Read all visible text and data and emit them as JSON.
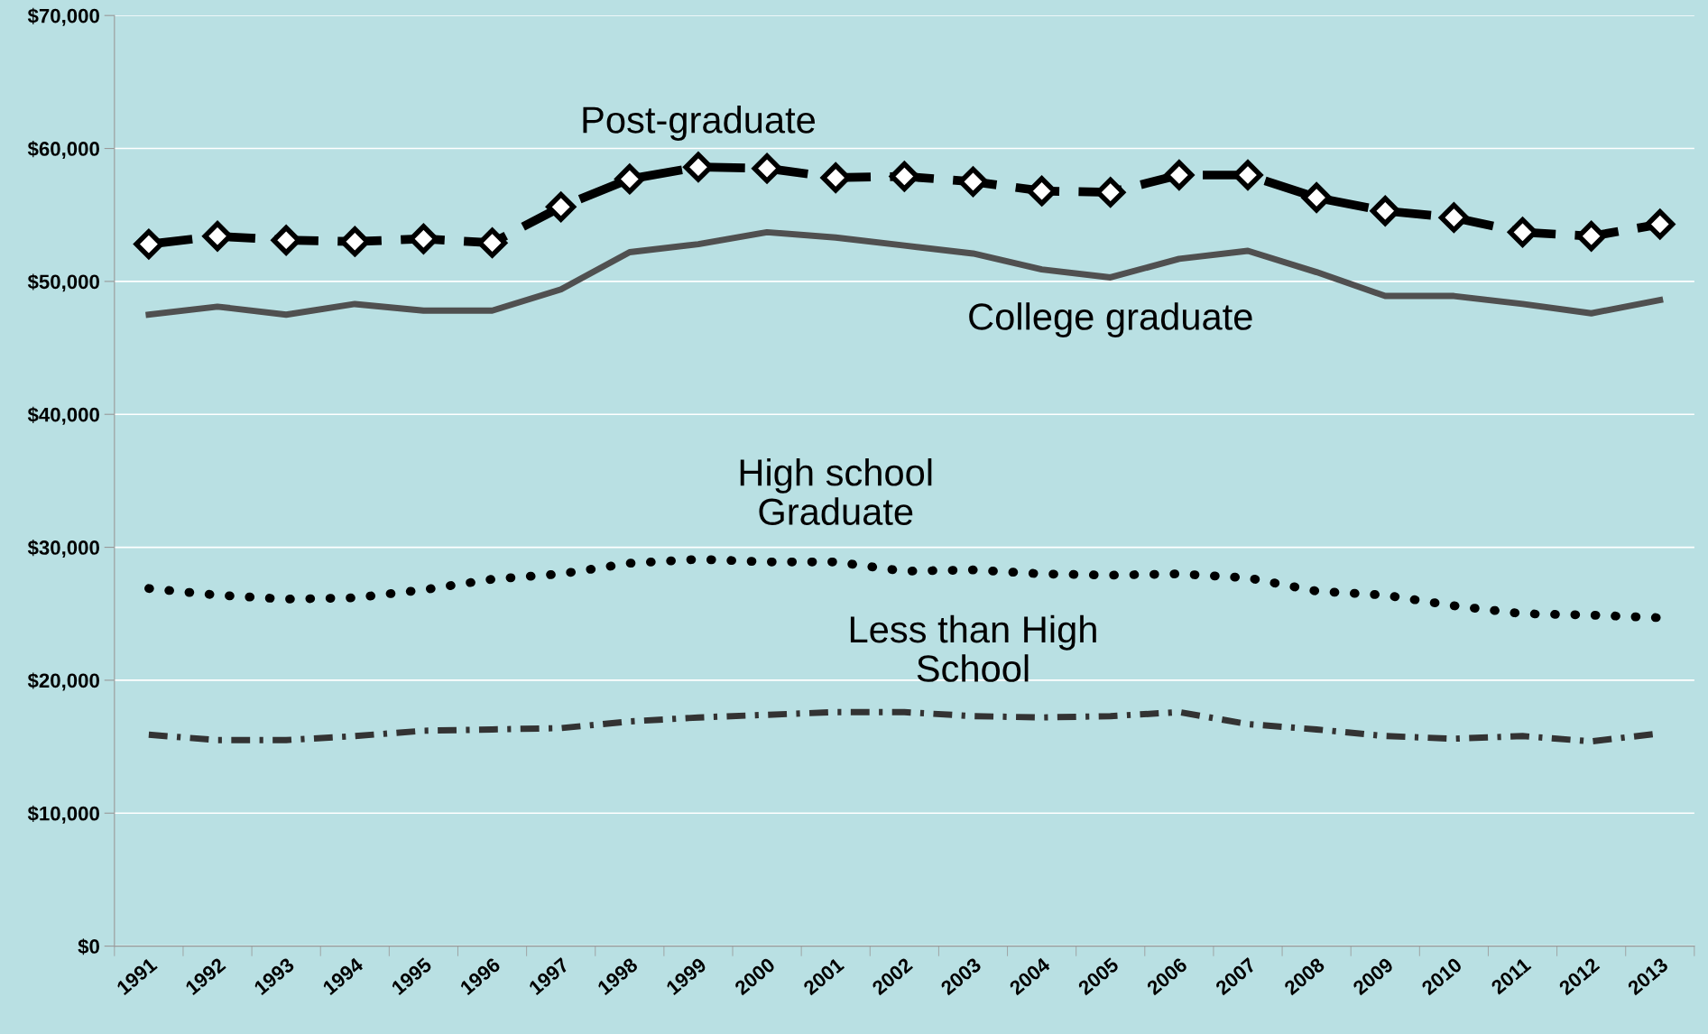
{
  "chart_data": {
    "type": "line",
    "categories": [
      "1991",
      "1992",
      "1993",
      "1994",
      "1995",
      "1996",
      "1997",
      "1998",
      "1999",
      "2000",
      "2001",
      "2002",
      "2003",
      "2004",
      "2005",
      "2006",
      "2007",
      "2008",
      "2009",
      "2010",
      "2011",
      "2012",
      "2013"
    ],
    "series": [
      {
        "name": "Post-graduate",
        "color": "#000000",
        "line_style": "dashed",
        "marker": "diamond",
        "values": [
          52800,
          53400,
          53100,
          53000,
          53200,
          52900,
          55600,
          57700,
          58600,
          58500,
          57800,
          57900,
          57500,
          56800,
          56700,
          58000,
          58000,
          56300,
          55300,
          54800,
          53700,
          53400,
          54300
        ]
      },
      {
        "name": "College graduate",
        "color": "#505050",
        "line_style": "solid",
        "marker": "none",
        "values": [
          47500,
          48100,
          47500,
          48300,
          47800,
          47800,
          49400,
          52200,
          52800,
          53700,
          53300,
          52700,
          52100,
          50900,
          50300,
          51700,
          52300,
          50700,
          48900,
          48900,
          48300,
          47600,
          48600
        ]
      },
      {
        "name": "High school\nGraduate",
        "color": "#000000",
        "line_style": "dotted",
        "marker": "none",
        "values": [
          26900,
          26400,
          26100,
          26200,
          26800,
          27600,
          28000,
          28800,
          29100,
          28900,
          28900,
          28200,
          28300,
          28000,
          27900,
          28000,
          27700,
          26700,
          26400,
          25600,
          25000,
          24900,
          24700
        ]
      },
      {
        "name": "Less than High\nSchool",
        "color": "#333333",
        "line_style": "dashdot",
        "marker": "none",
        "values": [
          15900,
          15500,
          15500,
          15800,
          16200,
          16300,
          16400,
          16900,
          17200,
          17400,
          17600,
          17600,
          17300,
          17200,
          17300,
          17600,
          16700,
          16300,
          15800,
          15600,
          15800,
          15400,
          16000
        ]
      }
    ],
    "ylim": [
      0,
      70000
    ],
    "yticks": [
      {
        "value": 0,
        "label": "$0"
      },
      {
        "value": 10000,
        "label": "$10,000"
      },
      {
        "value": 20000,
        "label": "$20,000"
      },
      {
        "value": 30000,
        "label": "$30,000"
      },
      {
        "value": 40000,
        "label": "$40,000"
      },
      {
        "value": 50000,
        "label": "$50,000"
      },
      {
        "value": 60000,
        "label": "$60,000"
      },
      {
        "value": 70000,
        "label": "$70,000"
      }
    ],
    "grid": "y",
    "legend": false
  }
}
